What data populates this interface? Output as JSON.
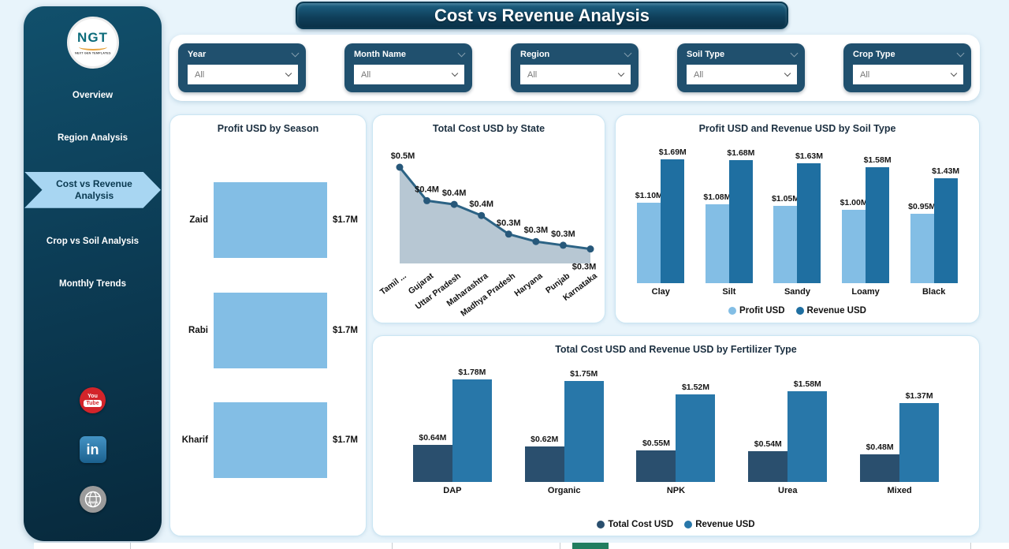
{
  "page": {
    "title": "Cost vs Revenue Analysis"
  },
  "sidebar": {
    "logo": {
      "text": "NGT",
      "subtext": "NEXT GEN TEMPLATES"
    },
    "items": [
      {
        "label": "Overview",
        "active": false
      },
      {
        "label": "Region Analysis",
        "active": false
      },
      {
        "label": "Cost vs Revenue Analysis",
        "active": true
      },
      {
        "label": "Crop vs Soil Analysis",
        "active": false
      },
      {
        "label": "Monthly Trends",
        "active": false
      }
    ],
    "social": {
      "youtube_top": "You",
      "youtube_bottom": "Tube",
      "linkedin": "in",
      "website": "www"
    }
  },
  "filters": [
    {
      "label": "Year",
      "value": "All"
    },
    {
      "label": "Month Name",
      "value": "All"
    },
    {
      "label": "Region",
      "value": "All"
    },
    {
      "label": "Soil Type",
      "value": "All"
    },
    {
      "label": "Crop Type",
      "value": "All"
    }
  ],
  "colors": {
    "page_bg": "#e8f4fb",
    "sidebar_dark_teal": "#0c3c55",
    "active_nav": "#a8d6f2",
    "filter_box": "#20506e",
    "light_blue_bar": "#83bee5",
    "soil_revenue_bar": "#1f6fa1",
    "fert_cost_bar": "#2a4f6e",
    "fert_revenue_bar": "#2877a9",
    "area_fill": "#b3c4d1",
    "area_line": "#2c6385",
    "bottom_green": "#217e5f",
    "youtube_red": "#d3242a",
    "linkedin_blue": "#1b618f"
  },
  "chart_data": [
    {
      "type": "bar",
      "orientation": "horizontal",
      "title": "Profit USD by Season",
      "categories": [
        "Zaid",
        "Rabi",
        "Kharif"
      ],
      "values": [
        1.7,
        1.7,
        1.7
      ],
      "labels": [
        "$1.7M",
        "$1.7M",
        "$1.7M"
      ],
      "bar_color": "#83bee5",
      "legend": "off"
    },
    {
      "type": "area",
      "title": "Total Cost USD by State",
      "categories": [
        "Tamil ...",
        "Gujarat",
        "Uttar Pradesh",
        "Maharashtra",
        "Madhya Pradesh",
        "Haryana",
        "Punjab",
        "Karnataka"
      ],
      "values": [
        0.5,
        0.41,
        0.4,
        0.37,
        0.32,
        0.3,
        0.29,
        0.28
      ],
      "labels": [
        "$0.5M",
        "$0.4M",
        "$0.4M",
        "$0.4M",
        "$0.3M",
        "$0.3M",
        "$0.3M",
        "$0.3M"
      ],
      "line_color": "#2c6385",
      "fill_color": "#b3c4d1",
      "marker_color": "#27587a",
      "x_label_rotation": -37,
      "legend": "off"
    },
    {
      "type": "bar",
      "grouped": true,
      "title": "Profit USD and Revenue USD by Soil Type",
      "categories": [
        "Clay",
        "Silt",
        "Sandy",
        "Loamy",
        "Black"
      ],
      "series": [
        {
          "name": "Profit USD",
          "color": "#83bee5",
          "values": [
            1.1,
            1.08,
            1.05,
            1.0,
            0.95
          ],
          "labels": [
            "$1.10M",
            "$1.08M",
            "$1.05M",
            "$1.00M",
            "$0.95M"
          ]
        },
        {
          "name": "Revenue USD",
          "color": "#1f6fa1",
          "values": [
            1.69,
            1.68,
            1.63,
            1.58,
            1.43
          ],
          "labels": [
            "$1.69M",
            "$1.68M",
            "$1.63M",
            "$1.58M",
            "$1.43M"
          ]
        }
      ],
      "legend_position": "bottom"
    },
    {
      "type": "bar",
      "grouped": true,
      "title": "Total Cost USD and Revenue USD by Fertilizer Type",
      "categories": [
        "DAP",
        "Organic",
        "NPK",
        "Urea",
        "Mixed"
      ],
      "series": [
        {
          "name": "Total Cost USD",
          "color": "#2a4f6e",
          "values": [
            0.64,
            0.62,
            0.55,
            0.54,
            0.48
          ],
          "labels": [
            "$0.64M",
            "$0.62M",
            "$0.55M",
            "$0.54M",
            "$0.48M"
          ]
        },
        {
          "name": "Revenue USD",
          "color": "#2877a9",
          "values": [
            1.78,
            1.75,
            1.52,
            1.58,
            1.37
          ],
          "labels": [
            "$1.78M",
            "$1.75M",
            "$1.52M",
            "$1.58M",
            "$1.37M"
          ]
        }
      ],
      "legend_position": "bottom"
    }
  ]
}
